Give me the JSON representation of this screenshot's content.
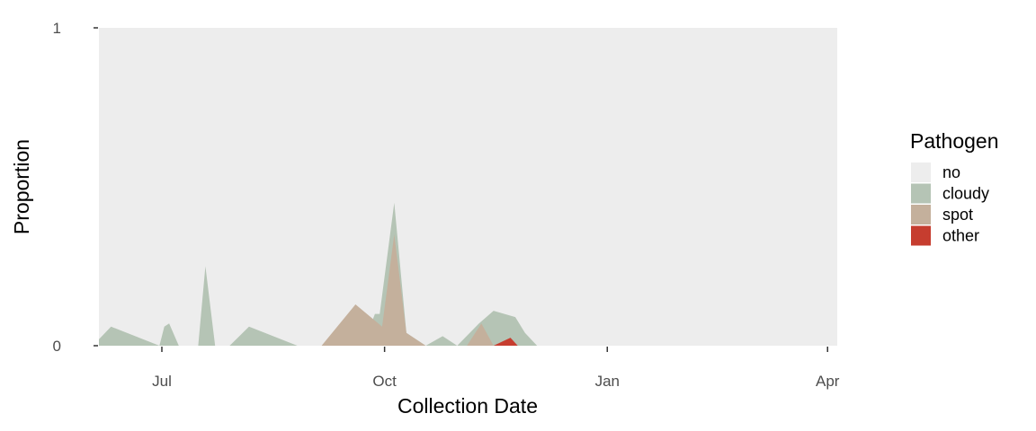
{
  "chart_data": {
    "type": "area",
    "stacked": true,
    "xlabel": "Collection Date",
    "ylabel": "Proportion",
    "ylim": [
      0,
      1
    ],
    "yticks": [
      0,
      1
    ],
    "xlim": [
      "2023-06-05",
      "2024-04-05"
    ],
    "xticks": [
      {
        "date": "2023-07-01",
        "label": "Jul"
      },
      {
        "date": "2023-10-01",
        "label": "Oct"
      },
      {
        "date": "2024-01-01",
        "label": "Jan"
      },
      {
        "date": "2024-04-01",
        "label": "Apr"
      }
    ],
    "grid": false,
    "legend": {
      "title": "Pathogen",
      "position": "right",
      "entries": [
        {
          "label": "no",
          "color": "#ededed"
        },
        {
          "label": "cloudy",
          "color": "#b5c4b5"
        },
        {
          "label": "spot",
          "color": "#c4b09c"
        },
        {
          "label": "other",
          "color": "#c63d2f"
        }
      ]
    },
    "series": [
      {
        "name": "cloudy",
        "color": "#b5c4b5",
        "points": [
          [
            "2023-06-05",
            0.02
          ],
          [
            "2023-06-10",
            0.06
          ],
          [
            "2023-06-30",
            0.0
          ],
          [
            "2023-07-02",
            0.06
          ],
          [
            "2023-07-04",
            0.07
          ],
          [
            "2023-07-08",
            0.0
          ],
          [
            "2023-07-16",
            0.0
          ],
          [
            "2023-07-19",
            0.25
          ],
          [
            "2023-07-23",
            0.0
          ],
          [
            "2023-07-29",
            0.0
          ],
          [
            "2023-08-06",
            0.06
          ],
          [
            "2023-08-26",
            0.0
          ],
          [
            "2023-09-22",
            0.0
          ],
          [
            "2023-09-27",
            0.1
          ],
          [
            "2023-09-29",
            0.1
          ],
          [
            "2023-10-05",
            0.45
          ],
          [
            "2023-10-10",
            0.04
          ],
          [
            "2023-10-18",
            0.0
          ],
          [
            "2023-10-25",
            0.03
          ],
          [
            "2023-10-31",
            0.0
          ],
          [
            "2023-11-09",
            0.07
          ],
          [
            "2023-11-15",
            0.11
          ],
          [
            "2023-11-24",
            0.09
          ],
          [
            "2023-11-28",
            0.04
          ],
          [
            "2023-12-03",
            0.0
          ]
        ]
      },
      {
        "name": "spot",
        "color": "#c4b09c",
        "points": [
          [
            "2023-08-26",
            0.0
          ],
          [
            "2023-09-05",
            0.0
          ],
          [
            "2023-09-19",
            0.13
          ],
          [
            "2023-09-30",
            0.06
          ],
          [
            "2023-10-05",
            0.35
          ],
          [
            "2023-10-10",
            0.04
          ],
          [
            "2023-10-18",
            0.0
          ],
          [
            "2023-11-04",
            0.0
          ],
          [
            "2023-11-10",
            0.07
          ],
          [
            "2023-11-15",
            0.0
          ],
          [
            "2023-11-24",
            0.0
          ]
        ]
      },
      {
        "name": "other",
        "color": "#c63d2f",
        "points": [
          [
            "2023-11-15",
            0.0
          ],
          [
            "2023-11-22",
            0.025
          ],
          [
            "2023-11-25",
            0.0
          ]
        ]
      }
    ]
  }
}
